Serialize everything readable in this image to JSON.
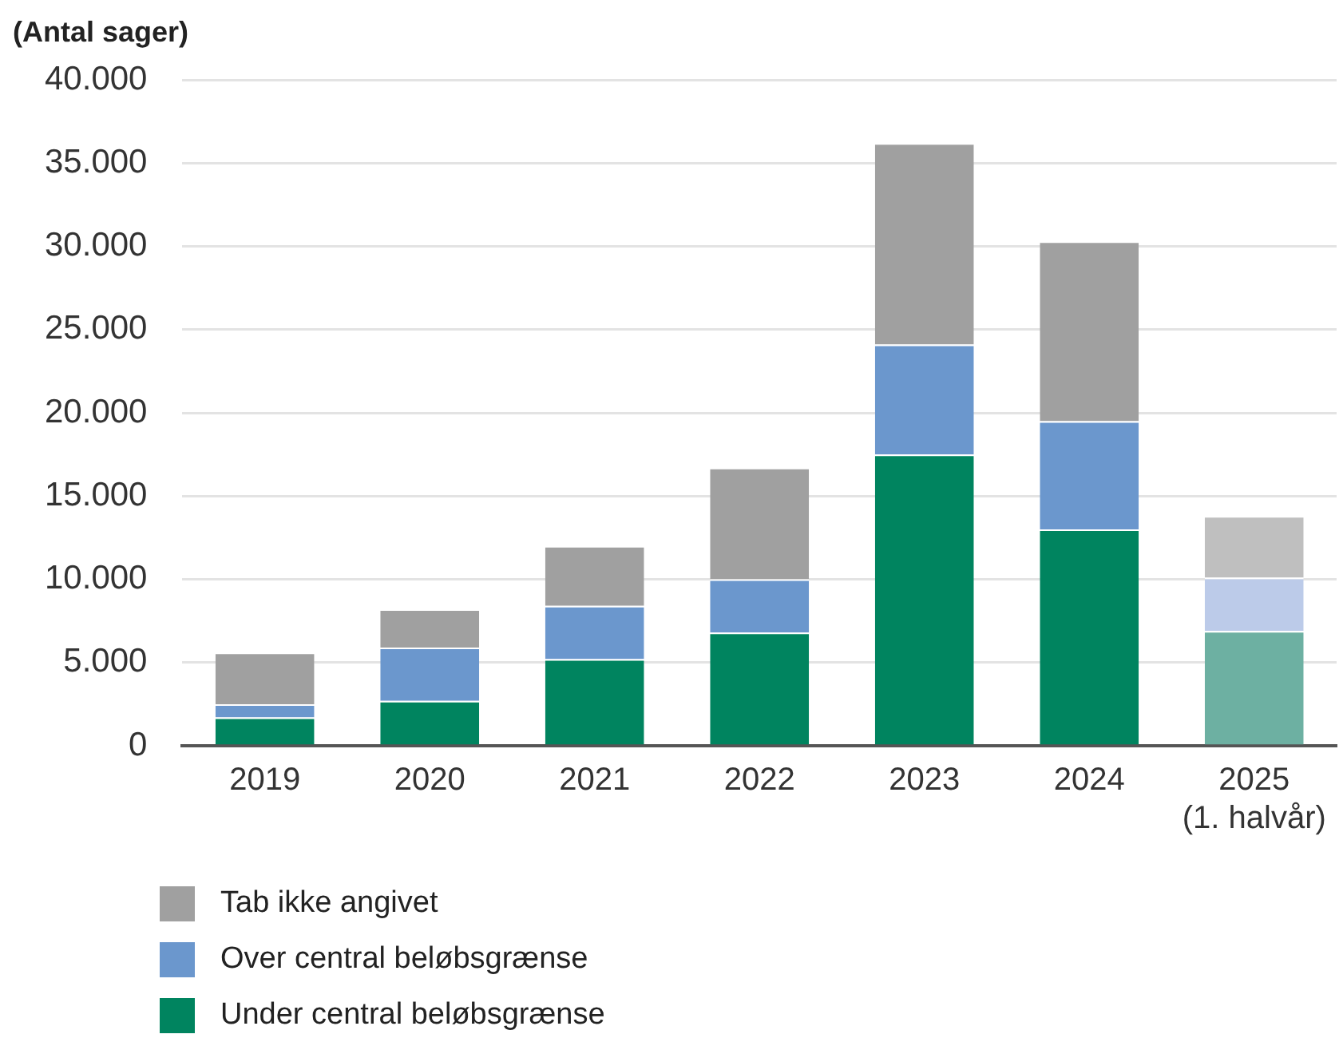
{
  "chart_data": {
    "type": "bar",
    "ylabel": "(Antal sager)",
    "stacked": true,
    "grid": "y",
    "legend": "bottom left",
    "categories": [
      "2019",
      "2020",
      "2021",
      "2022",
      "2023",
      "2024",
      "2025\n(1. halvår)"
    ],
    "series": [
      {
        "name": "Under central beløbsgrænse",
        "color": "#00845f",
        "colors": [
          "#00845f",
          "#00845f",
          "#00845f",
          "#00845f",
          "#00845f",
          "#00845f",
          "#6db0a2"
        ],
        "values": [
          1700,
          2700,
          5200,
          6800,
          17500,
          13000,
          6900
        ]
      },
      {
        "name": "Over central beløbsgrænse",
        "color": "#6b97cd",
        "colors": [
          "#6b97cd",
          "#6b97cd",
          "#6b97cd",
          "#6b97cd",
          "#6b97cd",
          "#6b97cd",
          "#bccbe9"
        ],
        "values": [
          800,
          3200,
          3200,
          3200,
          6600,
          6500,
          3200
        ]
      },
      {
        "name": "Tab ikke angivet",
        "color": "#a0a0a0",
        "colors": [
          "#a0a0a0",
          "#a0a0a0",
          "#a0a0a0",
          "#a0a0a0",
          "#a0a0a0",
          "#a0a0a0",
          "#bfbfbf"
        ],
        "values": [
          3100,
          2300,
          3600,
          6700,
          12100,
          10800,
          3700
        ]
      }
    ],
    "ylim": [
      0,
      40000
    ],
    "yticks": [
      {
        "value": 0,
        "label": "0"
      },
      {
        "value": 5000,
        "label": "5.000"
      },
      {
        "value": 10000,
        "label": "10.000"
      },
      {
        "value": 15000,
        "label": "15.000"
      },
      {
        "value": 20000,
        "label": "20.000"
      },
      {
        "value": 25000,
        "label": "25.000"
      },
      {
        "value": 30000,
        "label": "30.000"
      },
      {
        "value": 35000,
        "label": "35.000"
      },
      {
        "value": 40000,
        "label": "40.000"
      }
    ]
  }
}
